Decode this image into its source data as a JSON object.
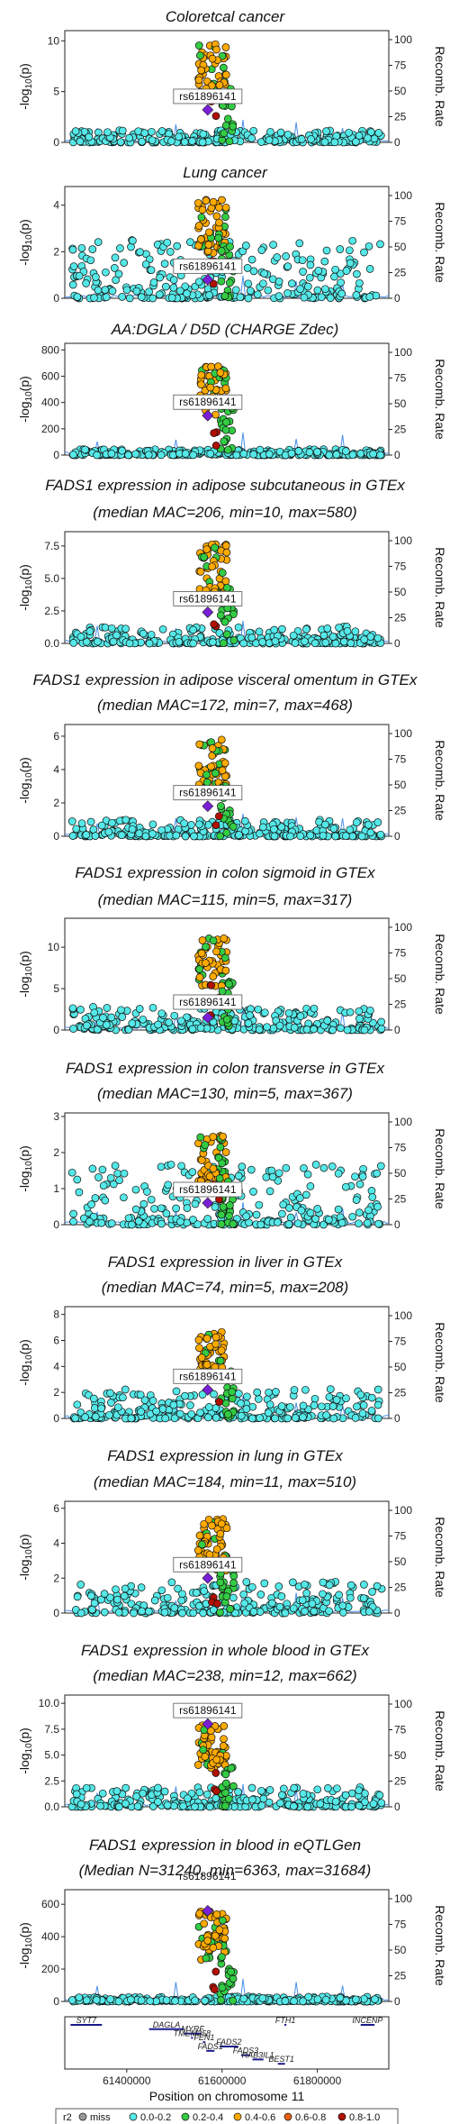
{
  "page": {
    "width": 500,
    "height": 2357
  },
  "snp_label": "rs61896141",
  "y2_label": "Recomb. Rate",
  "y_label": "-log",
  "y_label_sub": "10",
  "y_label_p": "(p)",
  "xaxis": {
    "label": "Position on chromosome 11",
    "ticks": [
      {
        "v": 61400000,
        "label": "61400000"
      },
      {
        "v": 61600000,
        "label": "61600000"
      },
      {
        "v": 61800000,
        "label": "61800000"
      }
    ],
    "range": [
      61270000,
      61950000
    ]
  },
  "colors": {
    "miss": "#9a9a9a",
    "0.0-0.2": "#55e8e8",
    "0.2-0.4": "#33cc44",
    "0.4-0.6": "#ffaa00",
    "0.6-0.8": "#e86010",
    "0.8-1.0": "#b01000",
    "lead": "#7a1fd6",
    "recomb": "#4a90e8"
  },
  "chart_data": [
    {
      "type": "scatter",
      "title": "Coloretcal cancer",
      "title2": "",
      "ylim": [
        0,
        11
      ],
      "yticks": [
        {
          "v": 0,
          "l": "0"
        },
        {
          "v": 5,
          "l": "5"
        },
        {
          "v": 10,
          "l": "10"
        }
      ],
      "lead_y": 3.2,
      "peak": 10,
      "noise": 1.2
    },
    {
      "type": "scatter",
      "title": "Lung cancer",
      "title2": "",
      "ylim": [
        0,
        4.8
      ],
      "yticks": [
        {
          "v": 0,
          "l": "0"
        },
        {
          "v": 2,
          "l": "2"
        },
        {
          "v": 4,
          "l": "4"
        }
      ],
      "lead_y": 0.8,
      "peak": 4.3,
      "noise": 2.5
    },
    {
      "type": "scatter",
      "title": "AA:DGLA / D5D (CHARGE Zdec)",
      "title2": "",
      "ylim": [
        0,
        850
      ],
      "yticks": [
        {
          "v": 0,
          "l": "0"
        },
        {
          "v": 200,
          "l": "200"
        },
        {
          "v": 400,
          "l": "400"
        },
        {
          "v": 600,
          "l": "600"
        },
        {
          "v": 800,
          "l": "800"
        }
      ],
      "lead_y": 300,
      "peak": 680,
      "noise": 45
    },
    {
      "type": "scatter",
      "title": "FADS1 expression in adipose subcutaneous in GTEx",
      "title2": "(median MAC=206, min=10, max=580)",
      "ylim": [
        0,
        8.6
      ],
      "yticks": [
        {
          "v": 0,
          "l": "0.0"
        },
        {
          "v": 2.5,
          "l": "2.5"
        },
        {
          "v": 5,
          "l": "5.0"
        },
        {
          "v": 7.5,
          "l": "7.5"
        }
      ],
      "lead_y": 2.4,
      "peak": 7.8,
      "noise": 1.3
    },
    {
      "type": "scatter",
      "title": "FADS1 expression in adipose visceral omentum in GTEx",
      "title2": "(median MAC=172, min=7, max=468)",
      "ylim": [
        0,
        6.7
      ],
      "yticks": [
        {
          "v": 0,
          "l": "0"
        },
        {
          "v": 2,
          "l": "2"
        },
        {
          "v": 4,
          "l": "4"
        },
        {
          "v": 6,
          "l": "6"
        }
      ],
      "lead_y": 1.8,
      "peak": 5.8,
      "noise": 1.0
    },
    {
      "type": "scatter",
      "title": "FADS1 expression in colon sigmoid in GTEx",
      "title2": "(median MAC=115, min=5, max=317)",
      "ylim": [
        0,
        13.5
      ],
      "yticks": [
        {
          "v": 0,
          "l": "0"
        },
        {
          "v": 5,
          "l": "5"
        },
        {
          "v": 10,
          "l": "10"
        }
      ],
      "lead_y": 1.5,
      "peak": 11.5,
      "noise": 2.8
    },
    {
      "type": "scatter",
      "title": "FADS1 expression in colon transverse in GTEx",
      "title2": "(median MAC=130, min=5, max=367)",
      "ylim": [
        0,
        3.1
      ],
      "yticks": [
        {
          "v": 0,
          "l": "0"
        },
        {
          "v": 1,
          "l": "1"
        },
        {
          "v": 2,
          "l": "2"
        },
        {
          "v": 3,
          "l": "3"
        }
      ],
      "lead_y": 0.6,
      "peak": 2.5,
      "noise": 1.7
    },
    {
      "type": "scatter",
      "title": "FADS1 expression in liver in GTEx",
      "title2": "(median MAC=74, min=5, max=208)",
      "ylim": [
        0,
        8.6
      ],
      "yticks": [
        {
          "v": 0,
          "l": "0"
        },
        {
          "v": 2,
          "l": "2"
        },
        {
          "v": 4,
          "l": "4"
        },
        {
          "v": 6,
          "l": "6"
        },
        {
          "v": 8,
          "l": "8"
        }
      ],
      "lead_y": 2.2,
      "peak": 6.8,
      "noise": 2.3
    },
    {
      "type": "scatter",
      "title": "FADS1 expression in lung in GTEx",
      "title2": "(median MAC=184, min=11, max=510)",
      "ylim": [
        0,
        6.4
      ],
      "yticks": [
        {
          "v": 0,
          "l": "0"
        },
        {
          "v": 2,
          "l": "2"
        },
        {
          "v": 4,
          "l": "4"
        },
        {
          "v": 6,
          "l": "6"
        }
      ],
      "lead_y": 2.0,
      "peak": 5.4,
      "noise": 1.8
    },
    {
      "type": "scatter",
      "title": "FADS1 expression in whole blood in GTEx",
      "title2": "(median MAC=238, min=12, max=662)",
      "ylim": [
        0,
        10.8
      ],
      "yticks": [
        {
          "v": 0,
          "l": "0.0"
        },
        {
          "v": 2.5,
          "l": "2.5"
        },
        {
          "v": 5,
          "l": "5.0"
        },
        {
          "v": 7.5,
          "l": "7.5"
        },
        {
          "v": 10,
          "l": "10.0"
        }
      ],
      "lead_y": 8.0,
      "peak": 7.9,
      "noise": 1.9
    },
    {
      "type": "scatter",
      "title": "FADS1 expression in blood in eQTLGen",
      "title2": "(Median N=31240, min=6363, max=31684)",
      "ylim": [
        0,
        690
      ],
      "yticks": [
        {
          "v": 0,
          "l": "0"
        },
        {
          "v": 200,
          "l": "200"
        },
        {
          "v": 400,
          "l": "400"
        },
        {
          "v": 600,
          "l": "600"
        }
      ],
      "lead_y": 560,
      "peak": 560,
      "noise": 30
    }
  ],
  "recomb": {
    "ylim": [
      0,
      100
    ],
    "ticks": [
      {
        "v": 0,
        "l": "0"
      },
      {
        "v": 25,
        "l": "25"
      },
      {
        "v": 50,
        "l": "50"
      },
      {
        "v": 75,
        "l": "75"
      },
      {
        "v": 100,
        "l": "100"
      }
    ]
  },
  "genes": [
    {
      "name": "SYT7",
      "start": 61282000,
      "end": 61348000,
      "row": 0
    },
    {
      "name": "FTH1",
      "start": 61731000,
      "end": 61735000,
      "row": 0
    },
    {
      "name": "INCENP",
      "start": 61891000,
      "end": 61920000,
      "row": 0
    },
    {
      "name": "DAGLA",
      "start": 61447000,
      "end": 61520000,
      "row": 1
    },
    {
      "name": "MYRF",
      "start": 61520000,
      "end": 61557000,
      "row": 2
    },
    {
      "name": "TMEM258",
      "start": 61535000,
      "end": 61539000,
      "row": 3
    },
    {
      "name": "FEN1",
      "start": 61560000,
      "end": 61565000,
      "row": 4
    },
    {
      "name": "FADS2",
      "start": 61595000,
      "end": 61634000,
      "row": 5
    },
    {
      "name": "FADS1",
      "start": 61567000,
      "end": 61584000,
      "row": 6
    },
    {
      "name": "FADS3",
      "start": 61640000,
      "end": 61659000,
      "row": 7
    },
    {
      "name": "RAB3IL1",
      "start": 61664000,
      "end": 61687000,
      "row": 8
    },
    {
      "name": "BEST1",
      "start": 61717000,
      "end": 61732000,
      "row": 9
    }
  ],
  "legend": {
    "title": "r2",
    "items": [
      {
        "key": "miss",
        "label": "miss"
      },
      {
        "key": "0.0-0.2",
        "label": "0.0-0.2"
      },
      {
        "key": "0.2-0.4",
        "label": "0.2-0.4"
      },
      {
        "key": "0.4-0.6",
        "label": "0.4-0.6"
      },
      {
        "key": "0.6-0.8",
        "label": "0.6-0.8"
      },
      {
        "key": "0.8-1.0",
        "label": "0.8-1.0"
      }
    ]
  }
}
